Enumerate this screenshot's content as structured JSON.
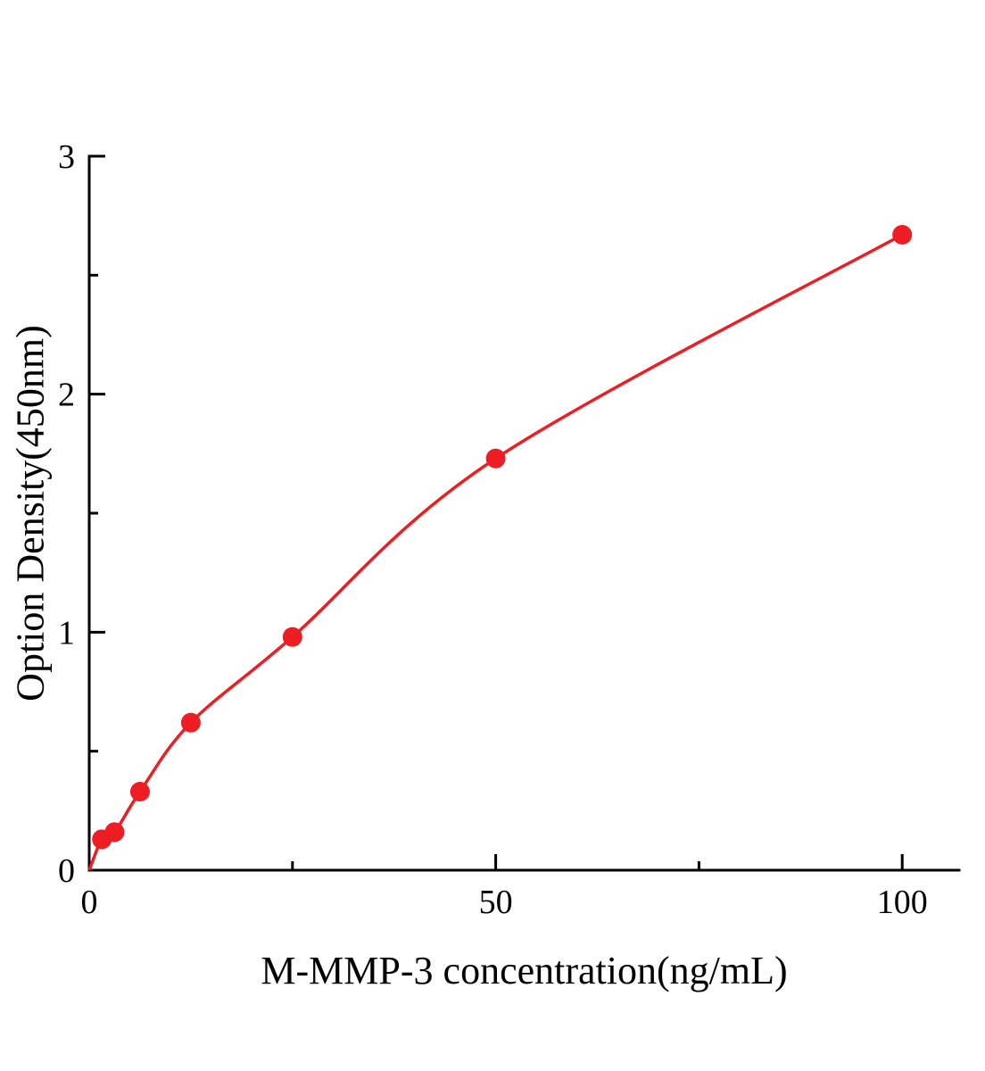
{
  "chart_data": {
    "type": "scatter",
    "title": "",
    "xlabel": "M-MMP-3 concentration(ng/mL)",
    "ylabel": "Option Density(450nm)",
    "x": [
      1.56,
      3.12,
      6.25,
      12.5,
      25,
      50,
      100
    ],
    "y": [
      0.13,
      0.16,
      0.33,
      0.62,
      0.98,
      1.73,
      2.67
    ],
    "fit_line": {
      "x": [
        0,
        1.56,
        3.12,
        6.25,
        12.5,
        25,
        50,
        100
      ],
      "y": [
        0,
        0.13,
        0.16,
        0.33,
        0.62,
        0.98,
        1.73,
        2.67
      ]
    },
    "xlim": [
      0,
      107
    ],
    "ylim": [
      0,
      3
    ],
    "x_major_ticks": [
      0,
      50,
      100
    ],
    "x_minor_ticks": [
      25,
      75
    ],
    "y_major_ticks": [
      0,
      1,
      2,
      3
    ],
    "y_minor_ticks": [
      0.5,
      1.5,
      2.5
    ],
    "grid": false,
    "legend": "none",
    "colors": {
      "series": "#ee1d23",
      "axis": "#000000",
      "background": "#ffffff"
    }
  }
}
